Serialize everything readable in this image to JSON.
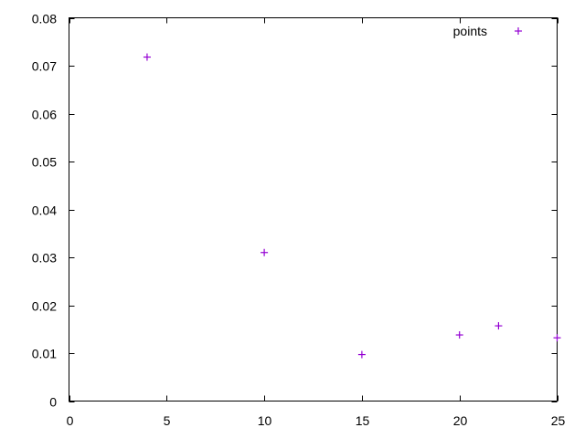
{
  "chart_data": {
    "type": "scatter",
    "title": "",
    "xlabel": "",
    "ylabel": "",
    "xlim": [
      0,
      25
    ],
    "ylim": [
      0,
      0.08
    ],
    "xticks": [
      0,
      5,
      10,
      15,
      20,
      25
    ],
    "yticks": [
      0,
      0.01,
      0.02,
      0.03,
      0.04,
      0.05,
      0.06,
      0.07,
      0.08
    ],
    "xtick_labels": [
      "0",
      "5",
      "10",
      "15",
      "20",
      "25"
    ],
    "ytick_labels": [
      "0",
      "0.01",
      "0.02",
      "0.03",
      "0.04",
      "0.05",
      "0.06",
      "0.07",
      "0.08"
    ],
    "grid": false,
    "legend_position": "top-right",
    "series": [
      {
        "name": "points",
        "marker": "plus",
        "color": "#9400d3",
        "x": [
          4,
          10,
          15,
          20,
          22,
          25
        ],
        "y": [
          0.0718,
          0.031,
          0.0097,
          0.0138,
          0.0157,
          0.0132
        ]
      }
    ]
  }
}
